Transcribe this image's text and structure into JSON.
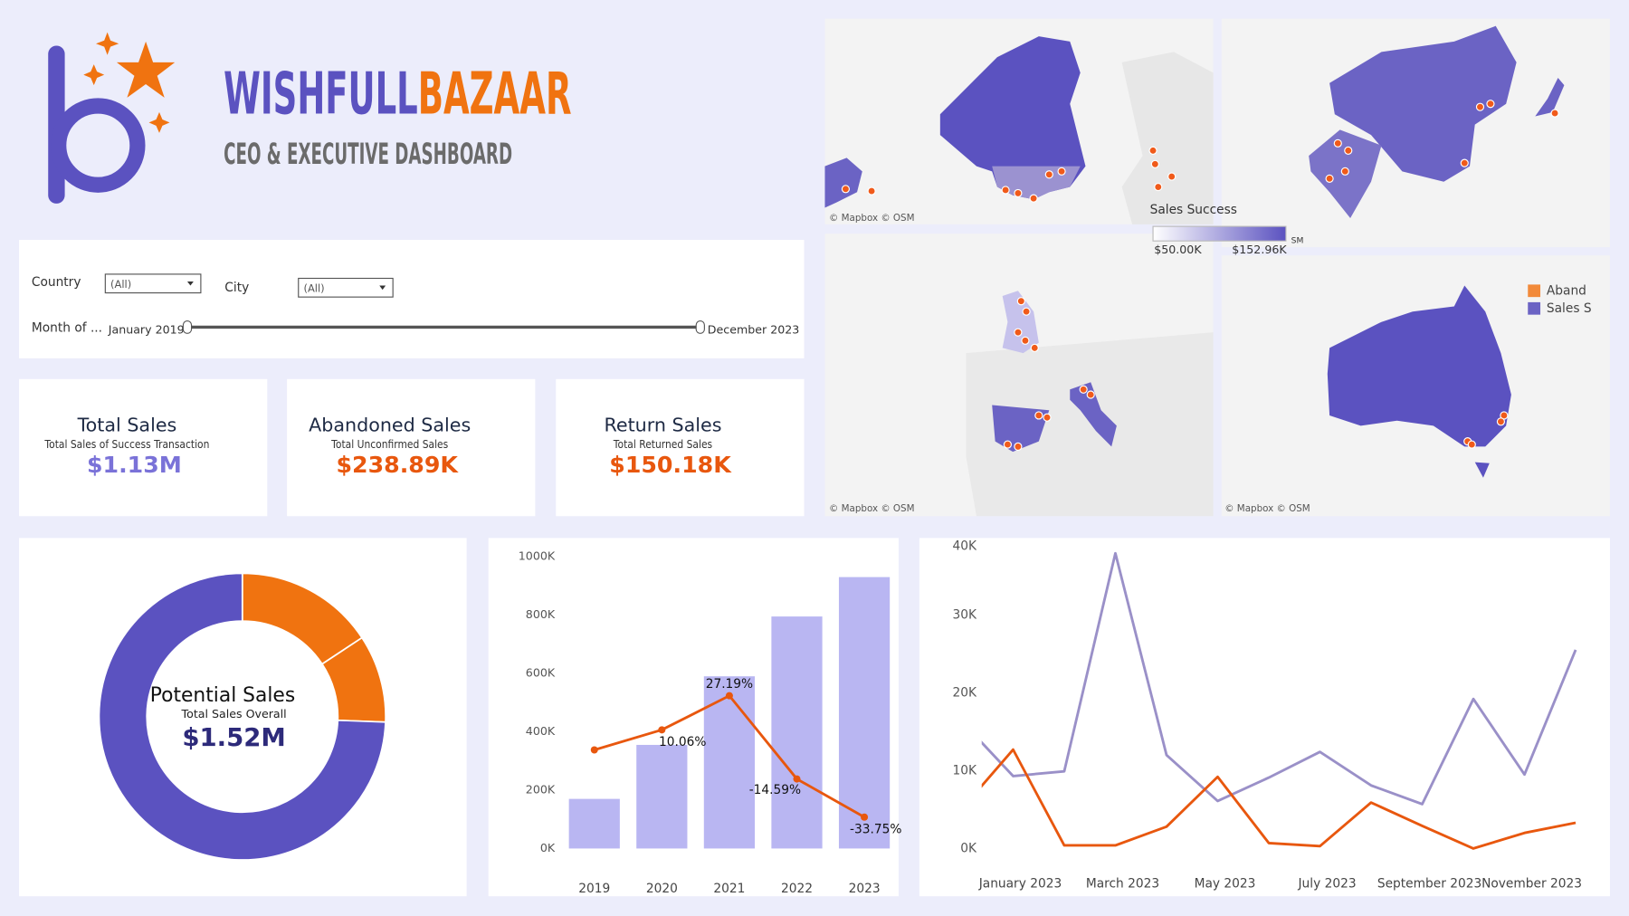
{
  "header": {
    "brand_1": "WISHFULL",
    "brand_2": "BAZAAR",
    "subtitle": "CEO & EXECUTIVE DASHBOARD"
  },
  "filters": {
    "country_label": "Country",
    "country_value": "(All)",
    "city_label": "City",
    "city_value": "(All)",
    "month_label": "Month of ...",
    "month_start": "January 2019",
    "month_end": "December 2023"
  },
  "kpis": [
    {
      "title": "Total Sales",
      "subtitle": "Total Sales of Success Transaction",
      "value": "$1.13M"
    },
    {
      "title": "Abandoned Sales",
      "subtitle": "Total Unconfirmed Sales",
      "value": "$238.89K"
    },
    {
      "title": "Return Sales",
      "subtitle": "Total Returned Sales",
      "value": "$150.18K"
    }
  ],
  "maps": {
    "attributions": [
      "© Mapbox  © OSM",
      "© Mapbox  © OSM",
      "© Mapbox  © OSM"
    ],
    "color_legend": {
      "title": "Sales Success",
      "min": "$50.00K",
      "max": "$152.96K",
      "cut": "SM"
    },
    "legend": [
      {
        "text": "Aband",
        "color": "#f28a3a"
      },
      {
        "text": "Sales S",
        "color": "#6b63c4"
      }
    ]
  },
  "chart_data": [
    {
      "type": "pie",
      "center_title": "Potential Sales",
      "center_subtitle": "Total Sales Overall",
      "center_value": "$1.52M",
      "values": [
        238.89,
        150.18,
        1130
      ],
      "colors": [
        "#f07310",
        "#f07310",
        "#5b52c0"
      ]
    },
    {
      "type": "bar",
      "categories": [
        "2019",
        "2020",
        "2021",
        "2022",
        "2023"
      ],
      "series": [
        {
          "color": "#b9b6f2",
          "values": [
            170,
            355,
            590,
            795,
            930
          ]
        },
        {
          "type": "line",
          "axis": "y2",
          "color": "#e8570e",
          "values": [
            0,
            10.06,
            27.19,
            -14.59,
            -33.75
          ],
          "value_labels": [
            null,
            "10.06%",
            "27.19%",
            "-14.59%",
            "-33.75%"
          ]
        }
      ],
      "ylim": [
        0,
        1000
      ],
      "yticks": [
        {
          "value": 0,
          "label": "0K"
        },
        {
          "value": 200,
          "label": "200K"
        },
        {
          "value": 400,
          "label": "400K"
        },
        {
          "value": 600,
          "label": "600K"
        },
        {
          "value": 800,
          "label": "800K"
        },
        {
          "value": 1000,
          "label": "1000K"
        }
      ],
      "y2lim": [
        -49.5,
        97
      ]
    },
    {
      "type": "line",
      "categories": [
        null,
        "January 2023",
        null,
        "March 2023",
        null,
        "May 2023",
        null,
        "July 2023",
        null,
        "September 2023",
        null,
        "November 2023",
        null
      ],
      "series": [
        {
          "color": "#9a90c8",
          "values": [
            16.3,
            9.3,
            9.9,
            37.9,
            12,
            6.1,
            9.1,
            12.4,
            8.1,
            5.7,
            19.2,
            9.5,
            25.5
          ]
        },
        {
          "color": "#e8570e",
          "values": [
            5.1,
            12.7,
            0.4,
            0.4,
            2.8,
            9.2,
            0.7,
            0.3,
            5.9,
            2.9,
            0,
            2,
            3.3
          ]
        }
      ],
      "ylim": [
        0,
        40
      ],
      "yticks": [
        {
          "value": 0,
          "label": "0K"
        },
        {
          "value": 10,
          "label": "10K"
        },
        {
          "value": 20,
          "label": "20K"
        },
        {
          "value": 30,
          "label": "30K"
        },
        {
          "value": 40,
          "label": "40K"
        }
      ]
    }
  ]
}
